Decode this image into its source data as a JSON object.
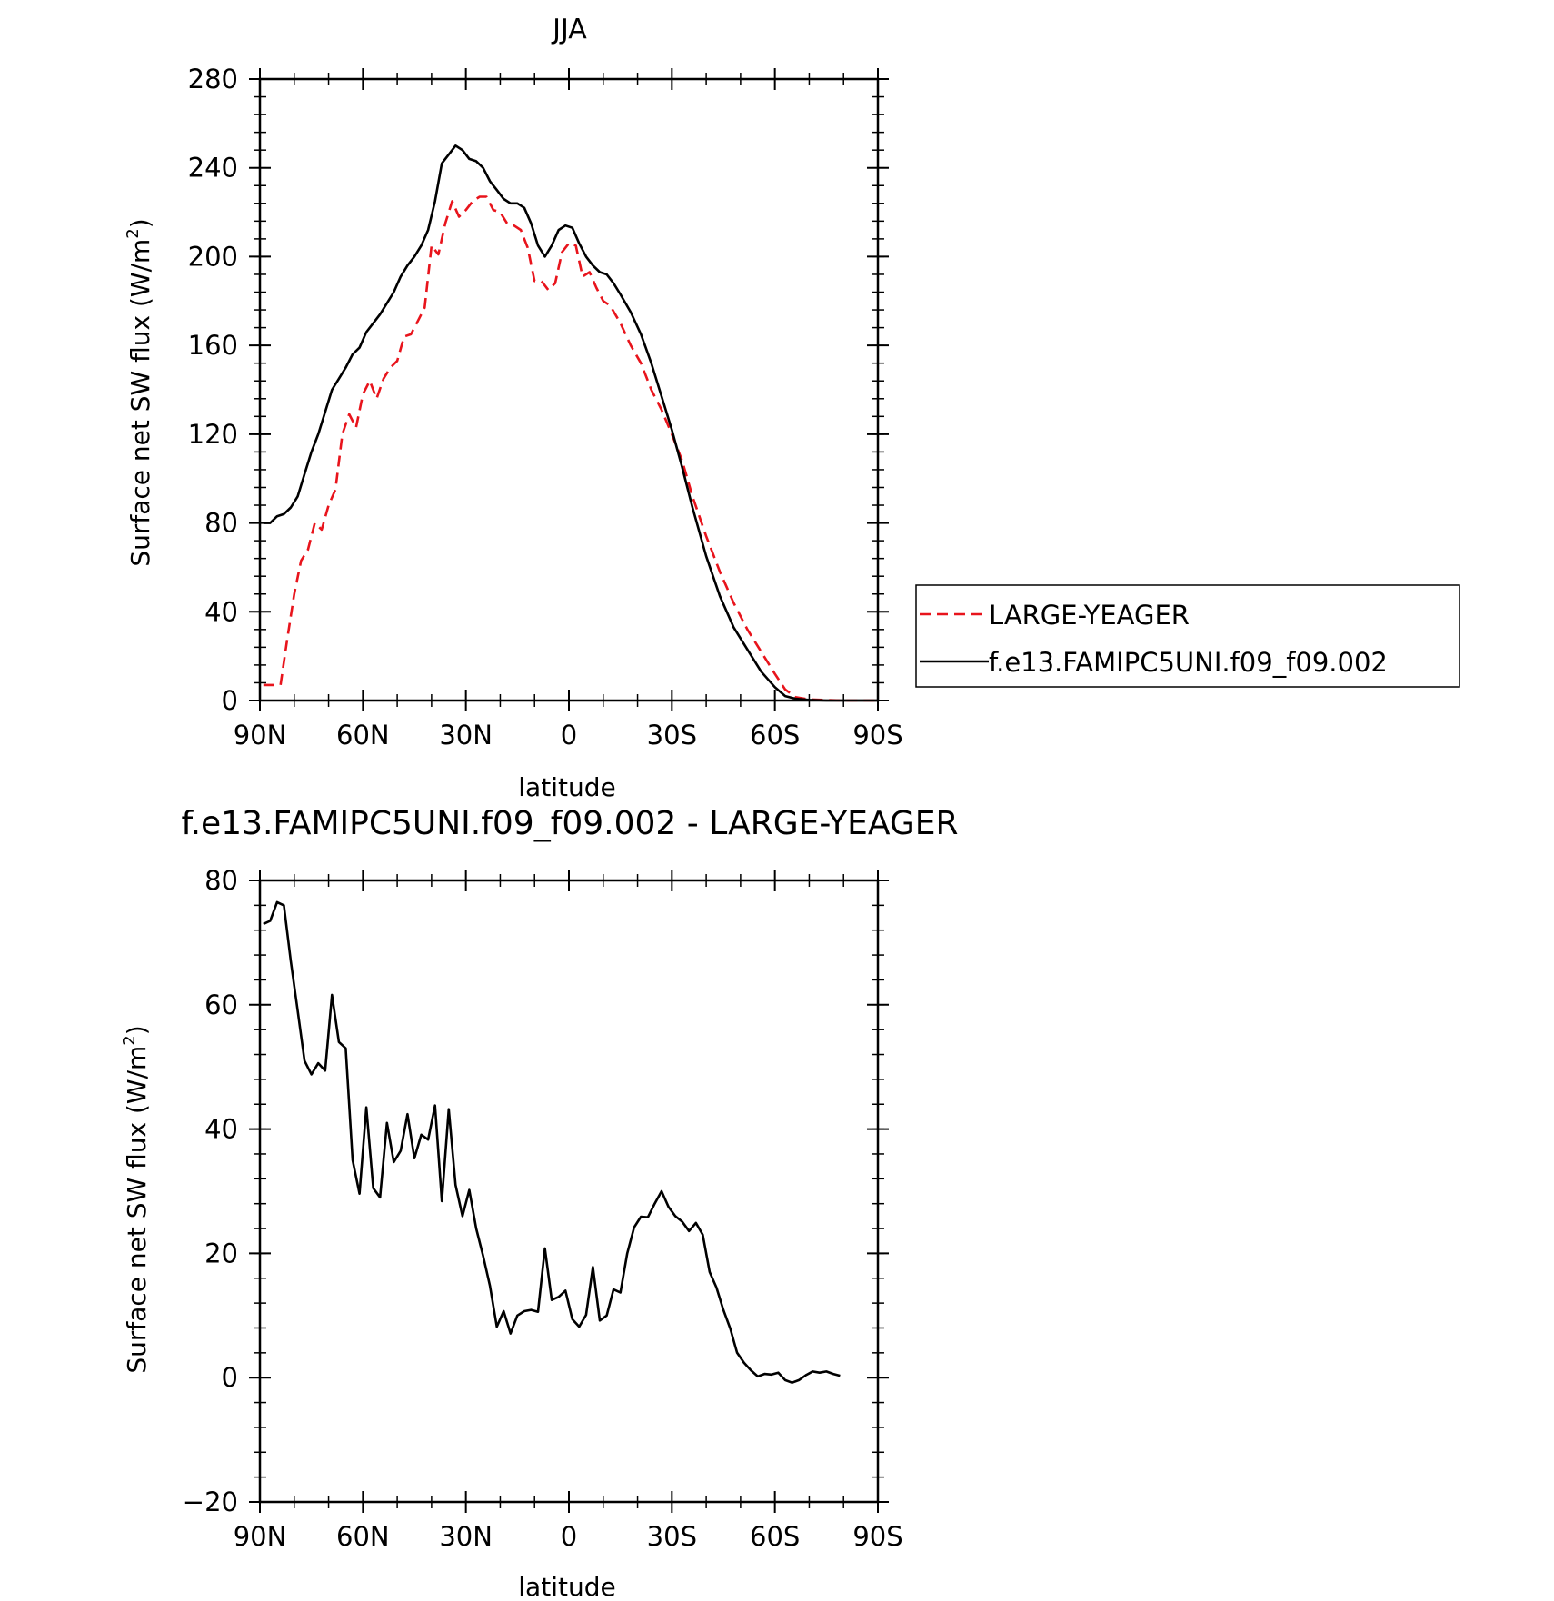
{
  "chart_data": [
    {
      "type": "line",
      "title": "JJA",
      "xlabel": "latitude",
      "ylabel": "Surface net SW flux (W/m",
      "ylabel_sup": "2",
      "ylabel_close": ")",
      "xlim": [
        90,
        -90
      ],
      "ylim": [
        0,
        280
      ],
      "x_ticks": [
        90,
        60,
        30,
        0,
        -30,
        -60,
        -90
      ],
      "x_tick_labels": [
        "90N",
        "60N",
        "30N",
        "0",
        "30S",
        "60S",
        "90S"
      ],
      "y_ticks": [
        0,
        40,
        80,
        120,
        160,
        200,
        240,
        280
      ],
      "y_tick_labels": [
        "0",
        "40",
        "80",
        "120",
        "160",
        "200",
        "240",
        "280"
      ],
      "legend_position": "right",
      "series": [
        {
          "name": "LARGE-YEAGER",
          "color": "#e8141c",
          "dash": "dashed",
          "x": [
            89,
            86,
            84,
            82,
            80,
            78,
            76,
            74,
            72,
            70,
            68,
            66,
            64,
            62,
            60,
            58,
            56,
            54,
            52,
            50,
            48,
            46,
            44,
            42,
            40,
            38,
            36,
            34,
            32,
            30,
            28,
            26,
            24,
            22,
            20,
            18,
            16,
            14,
            12,
            10,
            8,
            6,
            4,
            2,
            0,
            -2,
            -4,
            -6,
            -8,
            -10,
            -12,
            -15,
            -18,
            -21,
            -24,
            -27,
            -30,
            -33,
            -36,
            -40,
            -44,
            -48,
            -52,
            -56,
            -60,
            -63,
            -66,
            -70,
            -75,
            -80,
            -85,
            -90
          ],
          "y": [
            7,
            7,
            7,
            28,
            48,
            63,
            68,
            80,
            77,
            88,
            95,
            120,
            129,
            123,
            138,
            144,
            136,
            145,
            150,
            153,
            164,
            165,
            171,
            177,
            205,
            201,
            215,
            225,
            218,
            221,
            225,
            227,
            227,
            221,
            220,
            215,
            214,
            212,
            204,
            189,
            189,
            185,
            188,
            202,
            206,
            205,
            191,
            193,
            186,
            180,
            178,
            170,
            160,
            152,
            140,
            131,
            120,
            108,
            92,
            74,
            58,
            44,
            32,
            22,
            12,
            5,
            1.5,
            0.5,
            0.2,
            0,
            0,
            0
          ]
        },
        {
          "name": "f.e13.FAMIPC5UNI.f09_f09.002",
          "color": "#000000",
          "dash": "solid",
          "x": [
            89,
            87,
            85,
            83,
            81,
            79,
            77,
            75,
            73,
            71,
            69,
            67,
            65,
            63,
            61,
            59,
            57,
            55,
            53,
            51,
            49,
            47,
            45,
            43,
            41,
            39,
            37,
            35,
            33,
            31,
            29,
            27,
            25,
            23,
            21,
            19,
            17,
            15,
            13,
            11,
            9,
            7,
            5,
            3,
            1,
            -1,
            -3,
            -5,
            -7,
            -9,
            -11,
            -13,
            -15,
            -18,
            -21,
            -24,
            -27,
            -30,
            -33,
            -36,
            -40,
            -44,
            -48,
            -52,
            -56,
            -60,
            -63,
            -66,
            -70,
            -75,
            -80,
            -85,
            -90
          ],
          "y": [
            80,
            80,
            83,
            84,
            87,
            92,
            102,
            112,
            120,
            130,
            140,
            145,
            150,
            156,
            159,
            166,
            170,
            174,
            179,
            184,
            191,
            196,
            200,
            205,
            212,
            225,
            242,
            246,
            250,
            248,
            244,
            243,
            240,
            234,
            230,
            226,
            224,
            224,
            222,
            215,
            205,
            200,
            205,
            212,
            214,
            213,
            206,
            200,
            196,
            193,
            192,
            188,
            183,
            175,
            165,
            152,
            137,
            122,
            105,
            87,
            65,
            47,
            33,
            23,
            13,
            6,
            2,
            0.8,
            0.3,
            0,
            0,
            0,
            0
          ]
        }
      ]
    },
    {
      "type": "line",
      "title": "f.e13.FAMIPC5UNI.f09_f09.002 - LARGE-YEAGER",
      "xlabel": "latitude",
      "ylabel": "Surface net SW flux (W/m",
      "ylabel_sup": "2",
      "ylabel_close": ")",
      "xlim": [
        90,
        -90
      ],
      "ylim": [
        -20,
        80
      ],
      "x_ticks": [
        90,
        60,
        30,
        0,
        -30,
        -60,
        -90
      ],
      "x_tick_labels": [
        "90N",
        "60N",
        "30N",
        "0",
        "30S",
        "60S",
        "90S"
      ],
      "y_ticks": [
        -20,
        0,
        20,
        40,
        60,
        80
      ],
      "y_tick_labels": [
        "-20",
        "0",
        "20",
        "40",
        "60",
        "80"
      ],
      "series": [
        {
          "color": "#000000",
          "dash": "solid",
          "x": [
            89,
            87,
            85,
            83,
            81,
            79,
            77,
            75,
            73,
            71,
            69,
            67,
            65,
            63,
            61,
            59,
            57,
            55,
            53,
            51,
            49,
            47,
            45,
            43,
            41,
            39,
            37,
            35,
            33,
            31,
            29,
            27,
            25,
            23,
            21,
            19,
            17,
            15,
            13,
            11,
            9,
            7,
            5,
            3,
            1,
            -1,
            -3,
            -5,
            -7,
            -9,
            -11,
            -13,
            -15,
            -17,
            -19,
            -21,
            -23,
            -25,
            -27,
            -29,
            -31,
            -33,
            -35,
            -37,
            -39,
            -41,
            -43,
            -45,
            -47,
            -49,
            -51,
            -53,
            -55,
            -57,
            -59,
            -61,
            -63,
            -65,
            -67,
            -69,
            -71,
            -73,
            -75,
            -77,
            -79
          ],
          "y": [
            73,
            73.5,
            76.5,
            76,
            67,
            59,
            51,
            48.8,
            50.6,
            49.4,
            61.6,
            54,
            53,
            35,
            29.6,
            43.5,
            30.5,
            29,
            41,
            34.7,
            36.5,
            42.4,
            35.3,
            39.1,
            38.3,
            43.8,
            28.4,
            43.2,
            31,
            26,
            30.2,
            24,
            19.6,
            14.8,
            8.2,
            10.7,
            7.1,
            10,
            10.7,
            10.9,
            10.6,
            20.8,
            12.5,
            13,
            14,
            9.4,
            8.2,
            10.1,
            17.8,
            9.2,
            10,
            14.2,
            13.7,
            20,
            24.2,
            25.9,
            25.8,
            28,
            30,
            27.5,
            26,
            25.1,
            23.6,
            24.9,
            23,
            17,
            14.5,
            10.9,
            7.9,
            4,
            2.4,
            1.2,
            0.2,
            0.6,
            0.5,
            0.8,
            -0.4,
            -0.8,
            -0.4,
            0.4,
            1.0,
            0.8,
            1.0,
            0.6,
            0.3
          ]
        }
      ]
    }
  ]
}
